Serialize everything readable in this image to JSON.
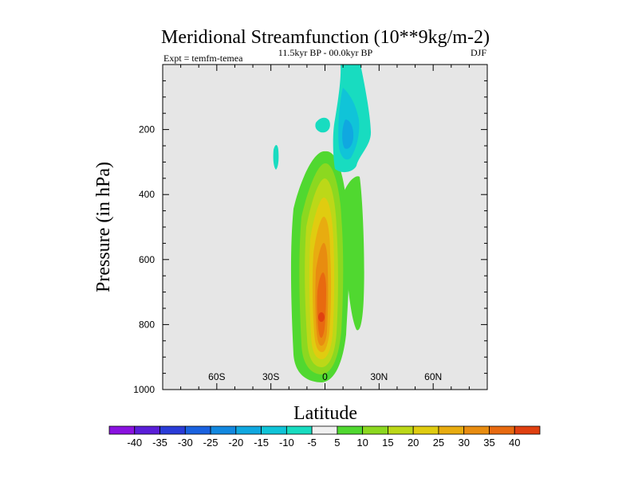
{
  "chart_data": {
    "type": "heatmap",
    "title": "Meridional Streamfunction (10**9kg/m-2)",
    "subtitle": "11.5kyr BP - 00.0kyr BP",
    "experiment_label": "Expt = temfm-temea",
    "season_label": "DJF",
    "xlabel": "Latitude",
    "ylabel": "Pressure (in hPa)",
    "xlim": [
      -90,
      90
    ],
    "ylim": [
      1000,
      0
    ],
    "x_ticks": [
      -60,
      -30,
      0,
      30,
      60
    ],
    "x_tick_labels": [
      "60S",
      "30S",
      "0",
      "30N",
      "60N"
    ],
    "y_ticks": [
      200,
      400,
      600,
      800,
      1000
    ],
    "y_tick_labels": [
      "200",
      "400",
      "600",
      "800",
      "1000"
    ],
    "background_color": "#e6e6e6",
    "colorbar": {
      "labels": [
        "-40",
        "-35",
        "-30",
        "-25",
        "-20",
        "-15",
        "-10",
        "-5",
        "5",
        "10",
        "15",
        "20",
        "25",
        "30",
        "35",
        "40"
      ],
      "colors": [
        "#8a12e0",
        "#5a1ed8",
        "#2a3cd8",
        "#1a62e0",
        "#1288e0",
        "#10a8e0",
        "#10c4d8",
        "#18dcc0",
        "#f0f0f0",
        "#50d830",
        "#8cd820",
        "#bcd818",
        "#e0cc10",
        "#e8ac10",
        "#e88c10",
        "#e86a10",
        "#e04010"
      ]
    },
    "positive_cell": {
      "colors": [
        "#50d830",
        "#8cd820",
        "#bcd818",
        "#e0cc10",
        "#e8ac10",
        "#e88c10",
        "#e86a10"
      ],
      "center_lat": -1,
      "center_p": 780,
      "max_value": 35
    },
    "negative_cell": {
      "colors": [
        "#18dcc0",
        "#10c4d8",
        "#10a8e0"
      ],
      "center_lat": 11,
      "center_p": 220,
      "min_value": -20
    }
  }
}
